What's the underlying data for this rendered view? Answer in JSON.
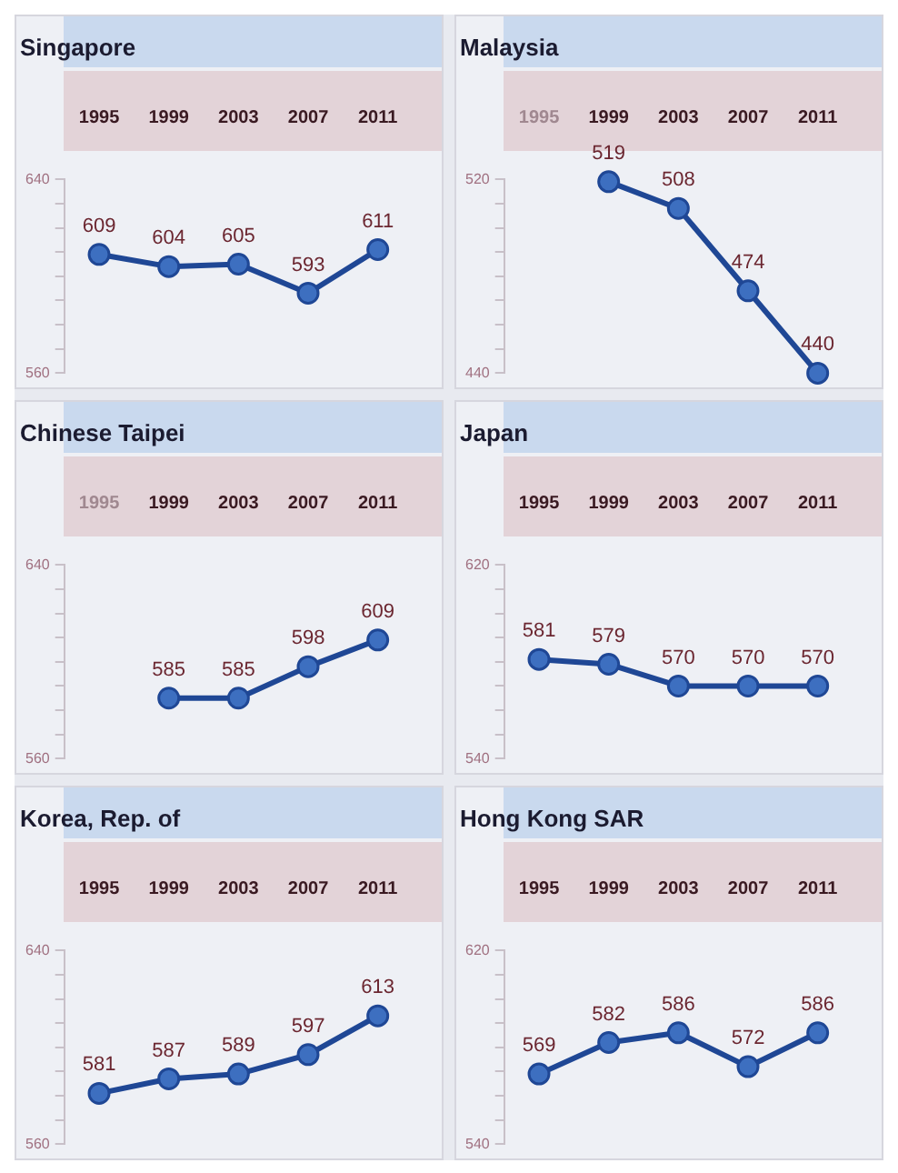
{
  "chart_data": [
    {
      "type": "line",
      "title": "Singapore",
      "categories": [
        "1995",
        "1999",
        "2003",
        "2007",
        "2011"
      ],
      "values": [
        609,
        604,
        605,
        593,
        611
      ],
      "color": "#1f4795",
      "ylim": [
        560,
        640
      ],
      "yticks": [
        560,
        {
          "value": 570,
          "label": null
        },
        {
          "value": 580,
          "label": null
        },
        {
          "value": 590,
          "label": null
        },
        {
          "value": 600,
          "label": null
        },
        {
          "value": 610,
          "label": null
        },
        {
          "value": 620,
          "label": null
        },
        {
          "value": 630,
          "label": null
        },
        640
      ],
      "data_labels": true,
      "marker": "circle",
      "grid": false
    },
    {
      "type": "line",
      "title": "Malaysia",
      "categories": [
        "1995",
        "1999",
        "2003",
        "2007",
        "2011"
      ],
      "values": [
        null,
        519,
        508,
        474,
        440
      ],
      "color": "#1f4795",
      "ylim": [
        440,
        520
      ],
      "yticks": [
        440,
        {
          "value": 450,
          "label": null
        },
        {
          "value": 460,
          "label": null
        },
        {
          "value": 470,
          "label": null
        },
        {
          "value": 480,
          "label": null
        },
        {
          "value": 490,
          "label": null
        },
        {
          "value": 500,
          "label": null
        },
        {
          "value": 510,
          "label": null
        },
        520
      ],
      "data_labels": true,
      "marker": "circle",
      "grid": false
    },
    {
      "type": "line",
      "title": "Chinese Taipei",
      "categories": [
        "1995",
        "1999",
        "2003",
        "2007",
        "2011"
      ],
      "values": [
        null,
        585,
        585,
        598,
        609
      ],
      "color": "#1f4795",
      "ylim": [
        560,
        640
      ],
      "yticks": [
        560,
        {
          "value": 570,
          "label": null
        },
        {
          "value": 580,
          "label": null
        },
        {
          "value": 590,
          "label": null
        },
        {
          "value": 600,
          "label": null
        },
        {
          "value": 610,
          "label": null
        },
        {
          "value": 620,
          "label": null
        },
        {
          "value": 630,
          "label": null
        },
        640
      ],
      "data_labels": true,
      "marker": "circle",
      "grid": false
    },
    {
      "type": "line",
      "title": "Japan",
      "categories": [
        "1995",
        "1999",
        "2003",
        "2007",
        "2011"
      ],
      "values": [
        581,
        579,
        570,
        570,
        570
      ],
      "color": "#1f4795",
      "ylim": [
        540,
        620
      ],
      "yticks": [
        540,
        {
          "value": 550,
          "label": null
        },
        {
          "value": 560,
          "label": null
        },
        {
          "value": 570,
          "label": null
        },
        {
          "value": 580,
          "label": null
        },
        {
          "value": 590,
          "label": null
        },
        {
          "value": 600,
          "label": null
        },
        {
          "value": 610,
          "label": null
        },
        620
      ],
      "data_labels": true,
      "marker": "circle",
      "grid": false
    },
    {
      "type": "line",
      "title": "Korea, Rep. of",
      "categories": [
        "1995",
        "1999",
        "2003",
        "2007",
        "2011"
      ],
      "values": [
        581,
        587,
        589,
        597,
        613
      ],
      "color": "#1f4795",
      "ylim": [
        560,
        640
      ],
      "yticks": [
        560,
        {
          "value": 570,
          "label": null
        },
        {
          "value": 580,
          "label": null
        },
        {
          "value": 590,
          "label": null
        },
        {
          "value": 600,
          "label": null
        },
        {
          "value": 610,
          "label": null
        },
        {
          "value": 620,
          "label": null
        },
        {
          "value": 630,
          "label": null
        },
        640
      ],
      "data_labels": true,
      "marker": "circle",
      "grid": false
    },
    {
      "type": "line",
      "title": "Hong Kong SAR",
      "categories": [
        "1995",
        "1999",
        "2003",
        "2007",
        "2011"
      ],
      "values": [
        569,
        582,
        586,
        572,
        586
      ],
      "color": "#1f4795",
      "ylim": [
        540,
        620
      ],
      "yticks": [
        540,
        {
          "value": 550,
          "label": null
        },
        {
          "value": 560,
          "label": null
        },
        {
          "value": 570,
          "label": null
        },
        {
          "value": 580,
          "label": null
        },
        {
          "value": 590,
          "label": null
        },
        {
          "value": 600,
          "label": null
        },
        {
          "value": 610,
          "label": null
        },
        620
      ],
      "data_labels": true,
      "marker": "circle",
      "grid": false
    }
  ]
}
